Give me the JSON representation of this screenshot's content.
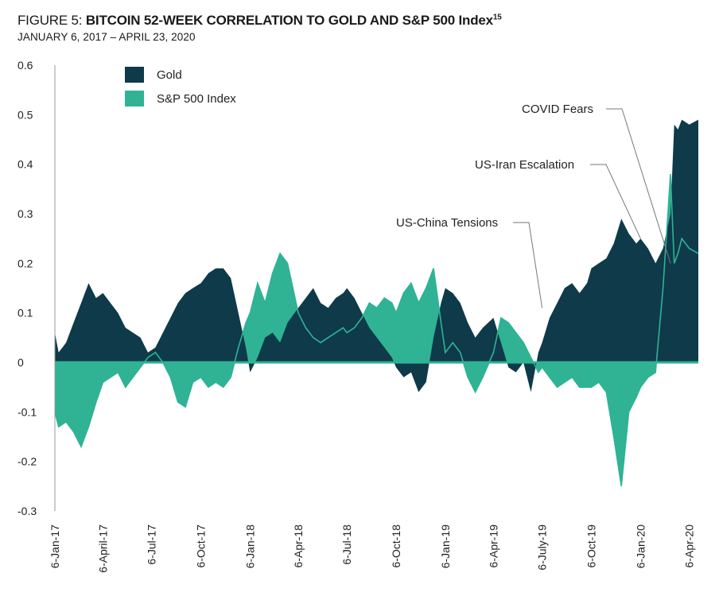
{
  "header": {
    "figure_label": "FIGURE 5: ",
    "title_main": "BITCOIN 52-WEEK CORRELATION TO GOLD AND S&P 500 Index",
    "title_sup": "15",
    "subtitle": "JANUARY 6, 2017 – APRIL 23, 2020"
  },
  "colors": {
    "gold": "#0e3a4a",
    "sp500": "#2fb394",
    "zero_line": "#2fb394",
    "axis": "#999999",
    "annotation_line": "#777777"
  },
  "chart_data": {
    "type": "area",
    "title": "BITCOIN 52-WEEK CORRELATION TO GOLD AND S&P 500 Index",
    "subtitle": "JANUARY 6, 2017 – APRIL 23, 2020",
    "ylim": [
      -0.3,
      0.6
    ],
    "yticks": [
      "0.6",
      "0.5",
      "0.4",
      "0.3",
      "0.2",
      "0.1",
      "0",
      "-0.1",
      "-0.2",
      "-0.3"
    ],
    "ytick_values": [
      0.6,
      0.5,
      0.4,
      0.3,
      0.2,
      0.1,
      0,
      -0.1,
      -0.2,
      -0.3
    ],
    "xticks": [
      "6-Jan-17",
      "6-April-17",
      "6-Jul-17",
      "6-Oct-17",
      "6-Jan-18",
      "6-Apr-18",
      "6-Jul-18",
      "6-Oct-18",
      "6-Jan-19",
      "6-Apr-19",
      "6-July-19",
      "6-Oct-19",
      "6-Jan-20",
      "6-Apr-20"
    ],
    "xtick_dates": [
      "2017-01-06",
      "2017-04-06",
      "2017-07-06",
      "2017-10-06",
      "2018-01-06",
      "2018-04-06",
      "2018-07-06",
      "2018-10-06",
      "2019-01-06",
      "2019-04-06",
      "2019-07-06",
      "2019-10-06",
      "2020-01-06",
      "2020-04-06"
    ],
    "xrange": [
      "2017-01-06",
      "2020-04-23"
    ],
    "grid": false,
    "legend_position": "top-left",
    "series": [
      {
        "name": "Gold",
        "color": "#0e3a4a",
        "points": [
          [
            "2017-01-06",
            0.06
          ],
          [
            "2017-01-13",
            0.02
          ],
          [
            "2017-01-27",
            0.04
          ],
          [
            "2017-02-10",
            0.08
          ],
          [
            "2017-02-24",
            0.12
          ],
          [
            "2017-03-10",
            0.16
          ],
          [
            "2017-03-24",
            0.13
          ],
          [
            "2017-04-06",
            0.14
          ],
          [
            "2017-04-20",
            0.12
          ],
          [
            "2017-05-04",
            0.1
          ],
          [
            "2017-05-18",
            0.07
          ],
          [
            "2017-06-01",
            0.06
          ],
          [
            "2017-06-15",
            0.05
          ],
          [
            "2017-06-29",
            0.02
          ],
          [
            "2017-07-13",
            0.03
          ],
          [
            "2017-07-27",
            0.06
          ],
          [
            "2017-08-10",
            0.09
          ],
          [
            "2017-08-24",
            0.12
          ],
          [
            "2017-09-07",
            0.14
          ],
          [
            "2017-09-21",
            0.15
          ],
          [
            "2017-10-06",
            0.16
          ],
          [
            "2017-10-20",
            0.18
          ],
          [
            "2017-11-03",
            0.19
          ],
          [
            "2017-11-17",
            0.19
          ],
          [
            "2017-12-01",
            0.17
          ],
          [
            "2017-12-15",
            0.1
          ],
          [
            "2017-12-29",
            0.03
          ],
          [
            "2018-01-06",
            -0.02
          ],
          [
            "2018-01-20",
            0.01
          ],
          [
            "2018-02-03",
            0.05
          ],
          [
            "2018-02-17",
            0.06
          ],
          [
            "2018-03-03",
            0.04
          ],
          [
            "2018-03-17",
            0.08
          ],
          [
            "2018-04-06",
            0.11
          ],
          [
            "2018-04-20",
            0.13
          ],
          [
            "2018-05-04",
            0.15
          ],
          [
            "2018-05-18",
            0.12
          ],
          [
            "2018-06-01",
            0.11
          ],
          [
            "2018-06-15",
            0.13
          ],
          [
            "2018-06-29",
            0.14
          ],
          [
            "2018-07-06",
            0.15
          ],
          [
            "2018-07-20",
            0.13
          ],
          [
            "2018-08-03",
            0.1
          ],
          [
            "2018-08-17",
            0.07
          ],
          [
            "2018-08-31",
            0.05
          ],
          [
            "2018-09-14",
            0.03
          ],
          [
            "2018-09-28",
            0.01
          ],
          [
            "2018-10-06",
            -0.01
          ],
          [
            "2018-10-20",
            -0.03
          ],
          [
            "2018-11-03",
            -0.02
          ],
          [
            "2018-11-17",
            -0.06
          ],
          [
            "2018-12-01",
            -0.04
          ],
          [
            "2018-12-15",
            0.05
          ],
          [
            "2018-12-29",
            0.12
          ],
          [
            "2019-01-06",
            0.15
          ],
          [
            "2019-01-20",
            0.14
          ],
          [
            "2019-02-03",
            0.12
          ],
          [
            "2019-02-17",
            0.08
          ],
          [
            "2019-03-03",
            0.05
          ],
          [
            "2019-03-17",
            0.07
          ],
          [
            "2019-04-06",
            0.09
          ],
          [
            "2019-04-20",
            0.04
          ],
          [
            "2019-05-04",
            -0.01
          ],
          [
            "2019-05-18",
            -0.02
          ],
          [
            "2019-06-01",
            0.0
          ],
          [
            "2019-06-15",
            -0.06
          ],
          [
            "2019-06-29",
            0.02
          ],
          [
            "2019-07-06",
            0.04
          ],
          [
            "2019-07-20",
            0.09
          ],
          [
            "2019-08-03",
            0.12
          ],
          [
            "2019-08-17",
            0.15
          ],
          [
            "2019-08-31",
            0.16
          ],
          [
            "2019-09-14",
            0.14
          ],
          [
            "2019-09-28",
            0.16
          ],
          [
            "2019-10-06",
            0.19
          ],
          [
            "2019-10-20",
            0.2
          ],
          [
            "2019-11-03",
            0.21
          ],
          [
            "2019-11-17",
            0.24
          ],
          [
            "2019-12-01",
            0.29
          ],
          [
            "2019-12-15",
            0.26
          ],
          [
            "2019-12-29",
            0.24
          ],
          [
            "2020-01-06",
            0.25
          ],
          [
            "2020-01-20",
            0.23
          ],
          [
            "2020-02-03",
            0.2
          ],
          [
            "2020-02-17",
            0.23
          ],
          [
            "2020-03-02",
            0.3
          ],
          [
            "2020-03-09",
            0.48
          ],
          [
            "2020-03-16",
            0.47
          ],
          [
            "2020-03-23",
            0.49
          ],
          [
            "2020-04-06",
            0.48
          ],
          [
            "2020-04-23",
            0.49
          ]
        ]
      },
      {
        "name": "S&P 500 Index",
        "color": "#2fb394",
        "points": [
          [
            "2017-01-06",
            -0.1
          ],
          [
            "2017-01-13",
            -0.13
          ],
          [
            "2017-01-27",
            -0.12
          ],
          [
            "2017-02-10",
            -0.14
          ],
          [
            "2017-02-24",
            -0.17
          ],
          [
            "2017-03-10",
            -0.13
          ],
          [
            "2017-03-24",
            -0.08
          ],
          [
            "2017-04-06",
            -0.04
          ],
          [
            "2017-04-20",
            -0.03
          ],
          [
            "2017-05-04",
            -0.02
          ],
          [
            "2017-05-18",
            -0.05
          ],
          [
            "2017-06-01",
            -0.03
          ],
          [
            "2017-06-15",
            -0.01
          ],
          [
            "2017-06-29",
            0.01
          ],
          [
            "2017-07-13",
            0.02
          ],
          [
            "2017-07-27",
            0.0
          ],
          [
            "2017-08-10",
            -0.03
          ],
          [
            "2017-08-24",
            -0.08
          ],
          [
            "2017-09-07",
            -0.09
          ],
          [
            "2017-09-21",
            -0.04
          ],
          [
            "2017-10-06",
            -0.03
          ],
          [
            "2017-10-20",
            -0.05
          ],
          [
            "2017-11-03",
            -0.04
          ],
          [
            "2017-11-17",
            -0.05
          ],
          [
            "2017-12-01",
            -0.03
          ],
          [
            "2017-12-15",
            0.03
          ],
          [
            "2017-12-29",
            0.08
          ],
          [
            "2018-01-06",
            0.1
          ],
          [
            "2018-01-20",
            0.16
          ],
          [
            "2018-02-03",
            0.12
          ],
          [
            "2018-02-17",
            0.18
          ],
          [
            "2018-03-03",
            0.22
          ],
          [
            "2018-03-17",
            0.2
          ],
          [
            "2018-04-06",
            0.1
          ],
          [
            "2018-04-20",
            0.07
          ],
          [
            "2018-05-04",
            0.05
          ],
          [
            "2018-05-18",
            0.04
          ],
          [
            "2018-06-01",
            0.05
          ],
          [
            "2018-06-15",
            0.06
          ],
          [
            "2018-06-29",
            0.07
          ],
          [
            "2018-07-06",
            0.06
          ],
          [
            "2018-07-20",
            0.07
          ],
          [
            "2018-08-03",
            0.09
          ],
          [
            "2018-08-17",
            0.12
          ],
          [
            "2018-08-31",
            0.11
          ],
          [
            "2018-09-14",
            0.13
          ],
          [
            "2018-09-28",
            0.12
          ],
          [
            "2018-10-06",
            0.1
          ],
          [
            "2018-10-20",
            0.14
          ],
          [
            "2018-11-03",
            0.16
          ],
          [
            "2018-11-17",
            0.12
          ],
          [
            "2018-12-01",
            0.15
          ],
          [
            "2018-12-15",
            0.19
          ],
          [
            "2018-12-29",
            0.08
          ],
          [
            "2019-01-06",
            0.02
          ],
          [
            "2019-01-20",
            0.04
          ],
          [
            "2019-02-03",
            0.02
          ],
          [
            "2019-02-17",
            -0.03
          ],
          [
            "2019-03-03",
            -0.06
          ],
          [
            "2019-03-17",
            -0.03
          ],
          [
            "2019-04-06",
            0.02
          ],
          [
            "2019-04-20",
            0.09
          ],
          [
            "2019-05-04",
            0.08
          ],
          [
            "2019-05-18",
            0.06
          ],
          [
            "2019-06-01",
            0.04
          ],
          [
            "2019-06-15",
            0.01
          ],
          [
            "2019-06-29",
            -0.02
          ],
          [
            "2019-07-06",
            -0.01
          ],
          [
            "2019-07-20",
            -0.03
          ],
          [
            "2019-08-03",
            -0.05
          ],
          [
            "2019-08-17",
            -0.04
          ],
          [
            "2019-08-31",
            -0.03
          ],
          [
            "2019-09-14",
            -0.05
          ],
          [
            "2019-09-28",
            -0.05
          ],
          [
            "2019-10-06",
            -0.05
          ],
          [
            "2019-10-20",
            -0.04
          ],
          [
            "2019-11-03",
            -0.06
          ],
          [
            "2019-11-17",
            -0.15
          ],
          [
            "2019-12-01",
            -0.25
          ],
          [
            "2019-12-15",
            -0.1
          ],
          [
            "2019-12-29",
            -0.07
          ],
          [
            "2020-01-06",
            -0.05
          ],
          [
            "2020-01-20",
            -0.03
          ],
          [
            "2020-02-03",
            -0.02
          ],
          [
            "2020-02-17",
            0.15
          ],
          [
            "2020-03-02",
            0.38
          ],
          [
            "2020-03-09",
            0.2
          ],
          [
            "2020-03-16",
            0.22
          ],
          [
            "2020-03-23",
            0.25
          ],
          [
            "2020-04-06",
            0.23
          ],
          [
            "2020-04-23",
            0.22
          ]
        ]
      }
    ],
    "annotations": [
      {
        "text": "COVID Fears",
        "date": "2020-03-02",
        "value": 0.2
      },
      {
        "text": "US-Iran Escalation",
        "date": "2020-01-06",
        "value": 0.25
      },
      {
        "text": "US-China Tensions",
        "date": "2019-07-06",
        "value": 0.11
      }
    ]
  }
}
